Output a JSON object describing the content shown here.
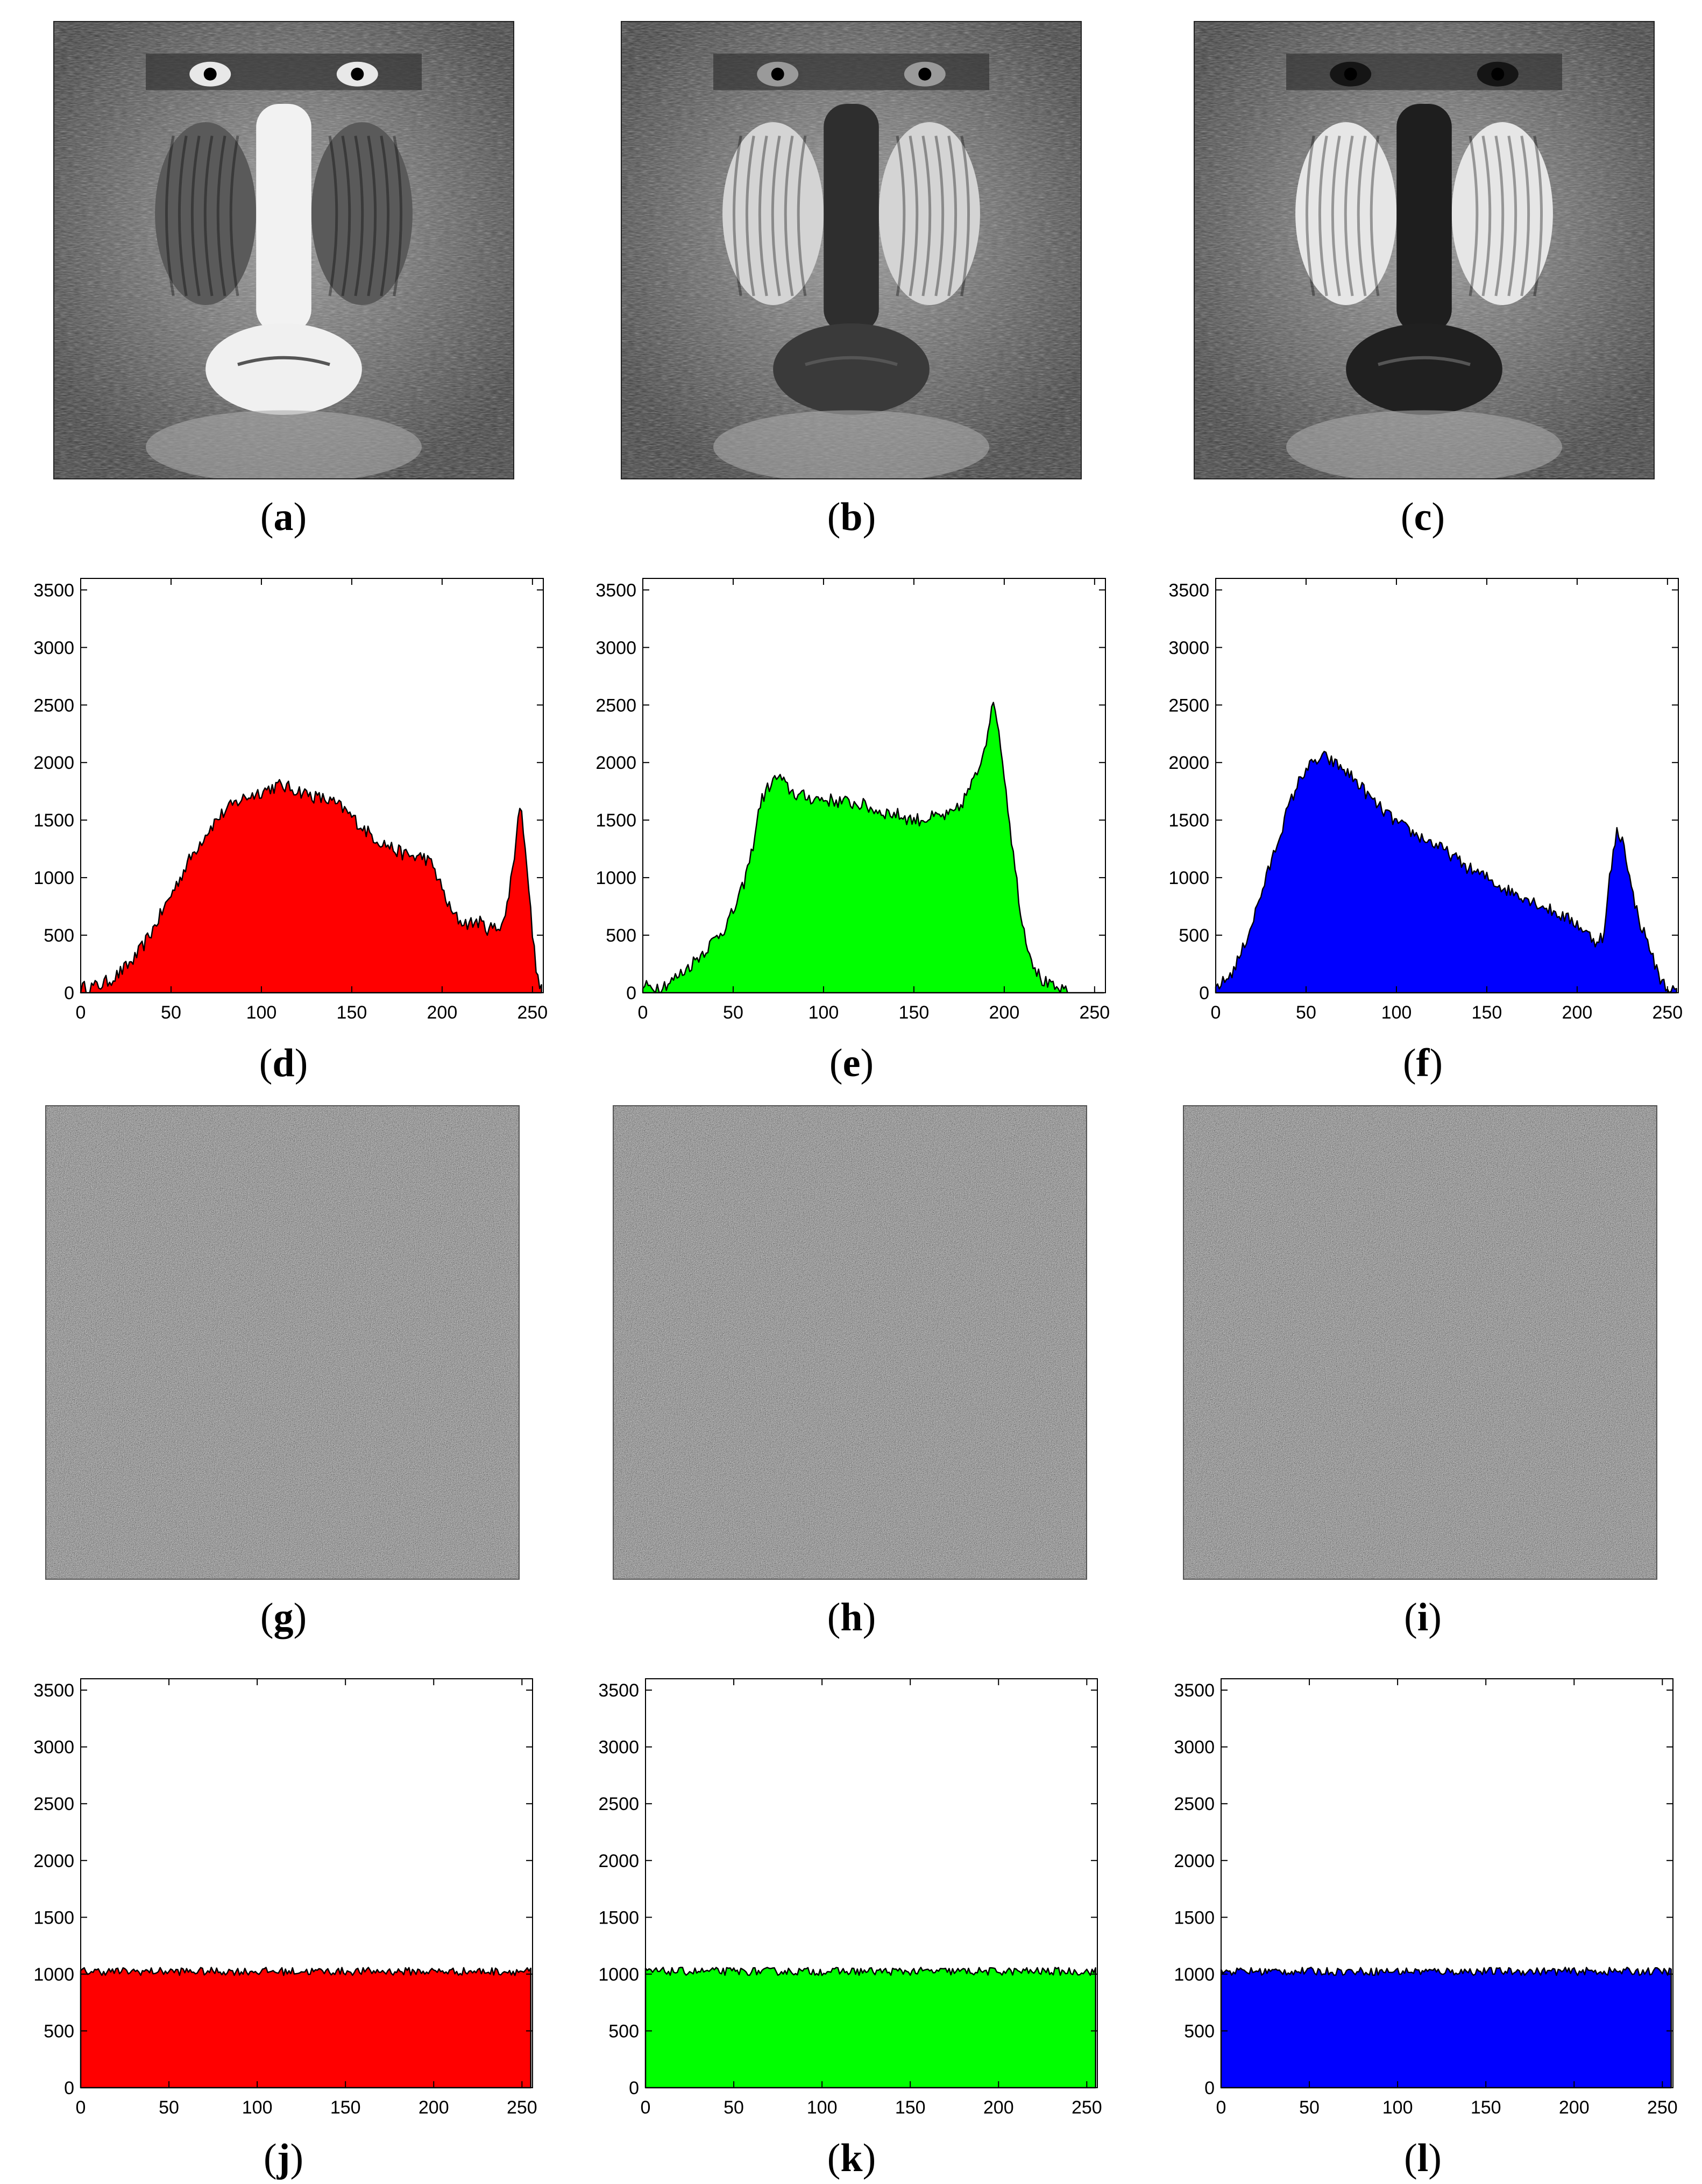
{
  "figure": {
    "panels": [
      {
        "id": "a",
        "kind": "image",
        "caption": "a",
        "subject": "mandrill-red-channel",
        "tone": "red"
      },
      {
        "id": "b",
        "kind": "image",
        "caption": "b",
        "subject": "mandrill-green-channel",
        "tone": "green"
      },
      {
        "id": "c",
        "kind": "image",
        "caption": "c",
        "subject": "mandrill-blue-channel",
        "tone": "blue"
      },
      {
        "id": "g",
        "kind": "noise",
        "caption": "g",
        "subject": "encrypted-red-channel"
      },
      {
        "id": "h",
        "kind": "noise",
        "caption": "h",
        "subject": "encrypted-green-channel"
      },
      {
        "id": "i",
        "kind": "noise",
        "caption": "i",
        "subject": "encrypted-blue-channel"
      }
    ]
  },
  "chart_data": [
    {
      "id": "d",
      "caption": "d",
      "type": "area",
      "color": "#ff0000",
      "xlim": [
        0,
        256
      ],
      "ylim": [
        0,
        3600
      ],
      "xticks": [
        0,
        50,
        100,
        150,
        200,
        250
      ],
      "yticks": [
        0,
        500,
        1000,
        1500,
        2000,
        2500,
        3000,
        3500
      ],
      "x": [
        0,
        5,
        10,
        15,
        20,
        25,
        30,
        35,
        40,
        45,
        50,
        55,
        60,
        65,
        70,
        75,
        80,
        85,
        90,
        95,
        100,
        105,
        110,
        115,
        120,
        125,
        130,
        135,
        140,
        145,
        150,
        155,
        160,
        165,
        170,
        175,
        180,
        185,
        190,
        195,
        200,
        205,
        210,
        215,
        220,
        225,
        230,
        235,
        240,
        243,
        246,
        250,
        253,
        256
      ],
      "values": [
        40,
        50,
        60,
        100,
        150,
        220,
        300,
        420,
        550,
        700,
        850,
        1000,
        1150,
        1280,
        1400,
        1500,
        1580,
        1640,
        1690,
        1720,
        1750,
        1780,
        1800,
        1780,
        1760,
        1730,
        1700,
        1680,
        1650,
        1600,
        1530,
        1450,
        1380,
        1320,
        1280,
        1230,
        1200,
        1180,
        1180,
        1100,
        900,
        700,
        620,
        600,
        620,
        560,
        560,
        650,
        1200,
        1650,
        1300,
        500,
        100,
        0
      ],
      "noise": 60
    },
    {
      "id": "e",
      "caption": "e",
      "type": "area",
      "color": "#00ff00",
      "xlim": [
        0,
        256
      ],
      "ylim": [
        0,
        3600
      ],
      "xticks": [
        0,
        50,
        100,
        150,
        200,
        250
      ],
      "yticks": [
        0,
        500,
        1000,
        1500,
        2000,
        2500,
        3000,
        3500
      ],
      "x": [
        0,
        5,
        10,
        15,
        20,
        25,
        30,
        35,
        40,
        45,
        50,
        55,
        60,
        65,
        70,
        75,
        80,
        85,
        90,
        95,
        100,
        110,
        120,
        130,
        140,
        150,
        160,
        170,
        175,
        180,
        185,
        190,
        193,
        196,
        200,
        205,
        210,
        215,
        220,
        225,
        230,
        235,
        256
      ],
      "values": [
        50,
        50,
        60,
        90,
        150,
        220,
        300,
        380,
        470,
        560,
        700,
        900,
        1200,
        1650,
        1800,
        1880,
        1780,
        1720,
        1700,
        1690,
        1680,
        1660,
        1640,
        1580,
        1550,
        1500,
        1520,
        1540,
        1600,
        1750,
        1900,
        2200,
        2500,
        2400,
        1900,
        1200,
        600,
        300,
        120,
        60,
        20,
        0,
        0
      ],
      "noise": 60
    },
    {
      "id": "f",
      "caption": "f",
      "type": "area",
      "color": "#0000ff",
      "xlim": [
        0,
        256
      ],
      "ylim": [
        0,
        3600
      ],
      "xticks": [
        0,
        50,
        100,
        150,
        200,
        250
      ],
      "yticks": [
        0,
        500,
        1000,
        1500,
        2000,
        2500,
        3000,
        3500
      ],
      "x": [
        0,
        5,
        10,
        15,
        20,
        25,
        30,
        35,
        40,
        45,
        50,
        55,
        60,
        65,
        70,
        75,
        80,
        85,
        90,
        95,
        100,
        110,
        120,
        130,
        140,
        150,
        160,
        170,
        180,
        190,
        200,
        205,
        210,
        215,
        218,
        222,
        226,
        230,
        235,
        240,
        245,
        250,
        256
      ],
      "values": [
        50,
        100,
        200,
        380,
        600,
        850,
        1100,
        1350,
        1600,
        1800,
        1950,
        2000,
        2050,
        2000,
        1950,
        1880,
        1800,
        1700,
        1620,
        1550,
        1480,
        1380,
        1300,
        1200,
        1080,
        1000,
        900,
        840,
        760,
        680,
        600,
        520,
        450,
        500,
        1000,
        1400,
        1300,
        900,
        600,
        400,
        150,
        30,
        0
      ],
      "noise": 55
    },
    {
      "id": "j",
      "caption": "j",
      "type": "area",
      "color": "#ff0000",
      "xlim": [
        0,
        256
      ],
      "ylim": [
        0,
        3600
      ],
      "xticks": [
        0,
        50,
        100,
        150,
        200,
        250
      ],
      "yticks": [
        0,
        500,
        1000,
        1500,
        2000,
        2500,
        3000,
        3500
      ],
      "x": [
        0,
        255
      ],
      "values": [
        1024,
        1024
      ],
      "noise": 35
    },
    {
      "id": "k",
      "caption": "k",
      "type": "area",
      "color": "#00ff00",
      "xlim": [
        0,
        256
      ],
      "ylim": [
        0,
        3600
      ],
      "xticks": [
        0,
        50,
        100,
        150,
        200,
        250
      ],
      "yticks": [
        0,
        500,
        1000,
        1500,
        2000,
        2500,
        3000,
        3500
      ],
      "x": [
        0,
        255
      ],
      "values": [
        1024,
        1024
      ],
      "noise": 35
    },
    {
      "id": "l",
      "caption": "l",
      "type": "area",
      "color": "#0000ff",
      "xlim": [
        0,
        256
      ],
      "ylim": [
        0,
        3600
      ],
      "xticks": [
        0,
        50,
        100,
        150,
        200,
        250
      ],
      "yticks": [
        0,
        500,
        1000,
        1500,
        2000,
        2500,
        3000,
        3500
      ],
      "x": [
        0,
        255
      ],
      "values": [
        1024,
        1024
      ],
      "noise": 35
    }
  ]
}
